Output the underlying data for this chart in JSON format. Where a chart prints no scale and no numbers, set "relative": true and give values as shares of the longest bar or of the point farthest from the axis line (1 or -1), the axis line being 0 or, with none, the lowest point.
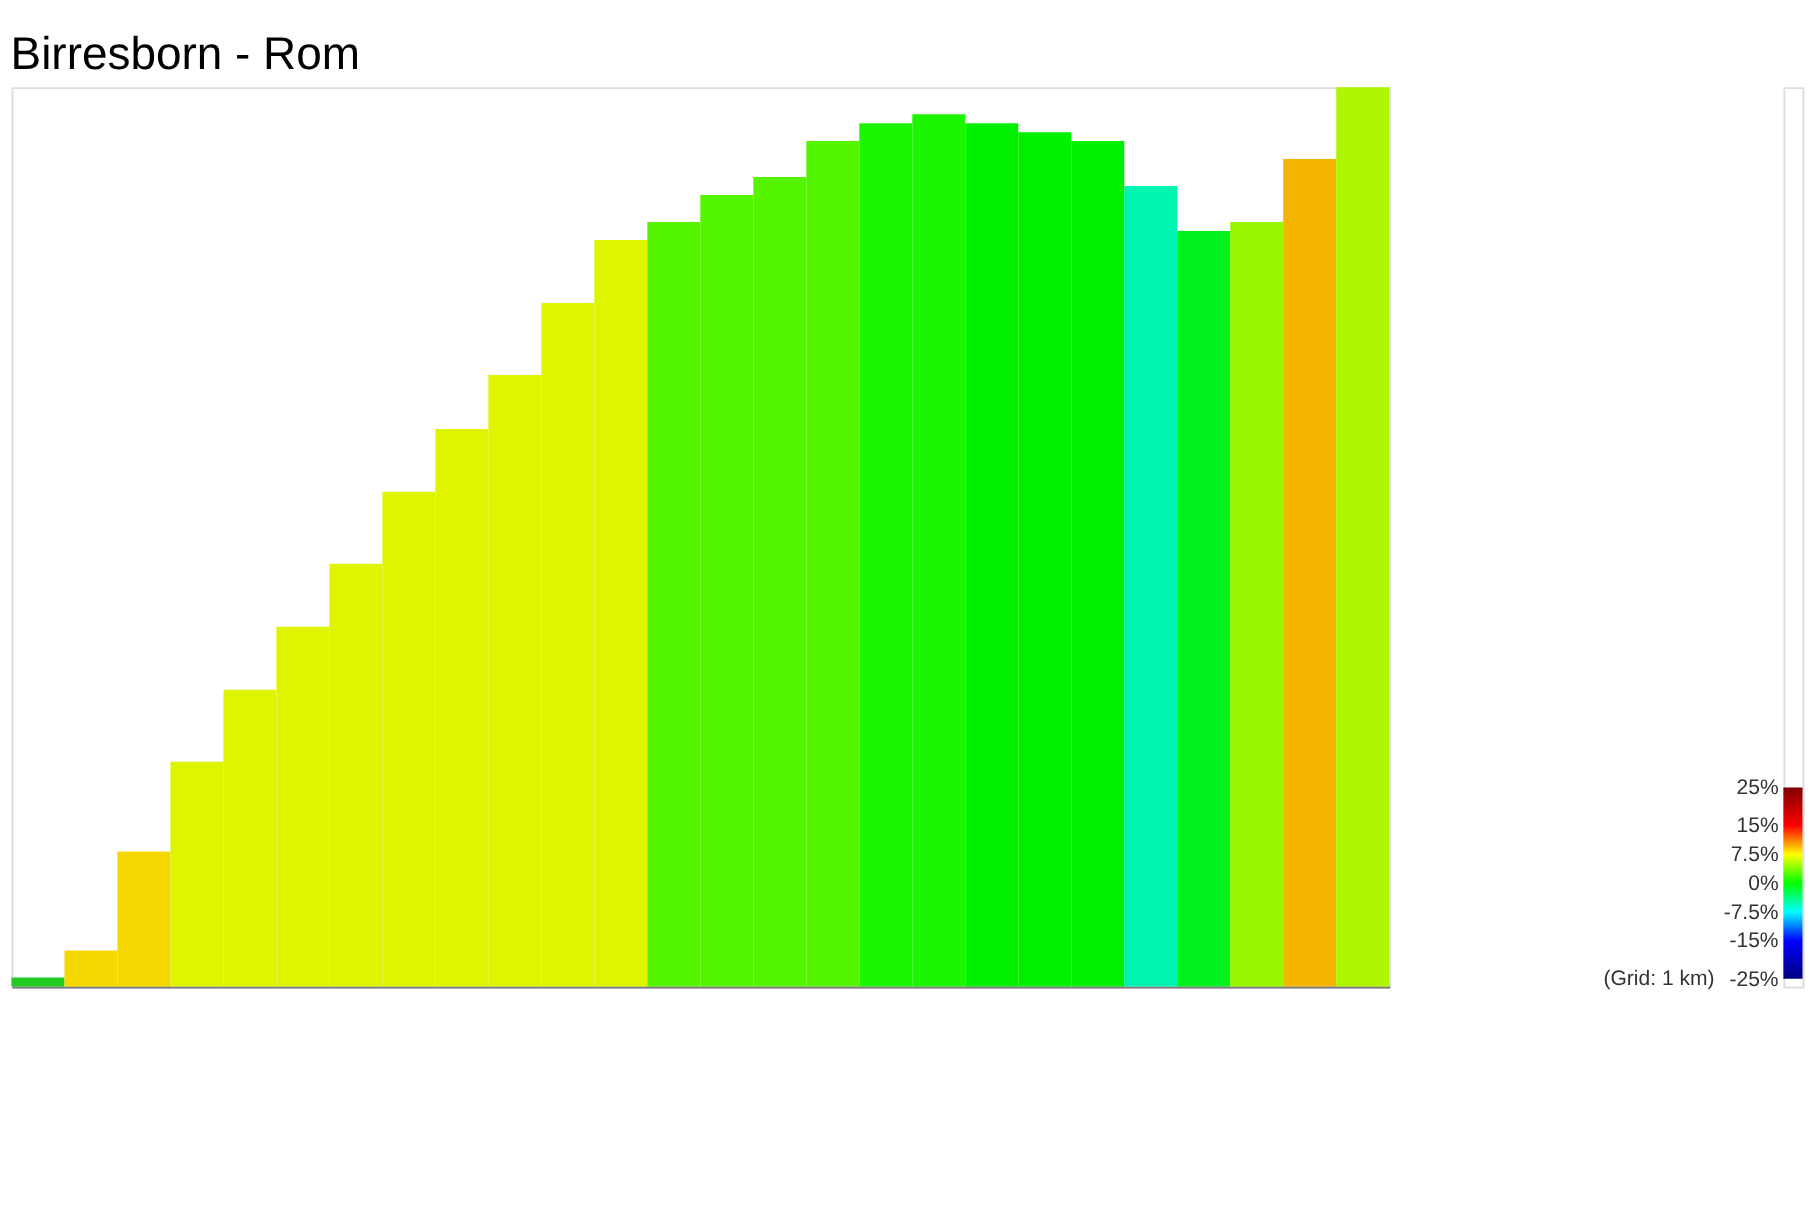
{
  "chart_data": {
    "type": "bar",
    "title": "Birresborn - Rom",
    "relative": true,
    "categories": [
      null,
      null,
      null,
      null,
      null,
      null,
      null,
      null,
      null,
      null,
      null,
      null,
      null,
      null,
      null,
      null,
      null,
      null,
      null,
      null,
      null,
      null,
      null,
      null,
      null,
      null
    ],
    "values": [
      0.01,
      0.04,
      0.15,
      0.25,
      0.33,
      0.4,
      0.47,
      0.55,
      0.62,
      0.68,
      0.76,
      0.83,
      0.85,
      0.88,
      0.9,
      0.94,
      0.96,
      0.97,
      0.96,
      0.95,
      0.94,
      0.89,
      0.84,
      0.85,
      0.92,
      1
    ],
    "colors": [
      "#22cc22",
      "#f5d800",
      "#f5d800",
      "#dff500",
      "#dff500",
      "#dff500",
      "#dff500",
      "#dff500",
      "#dff500",
      "#dff500",
      "#dff500",
      "#dff500",
      "#55f500",
      "#55f500",
      "#55f500",
      "#55f500",
      "#1cf500",
      "#1cf500",
      "#00f000",
      "#00f000",
      "#00f000",
      "#00f5b0",
      "#00f020",
      "#99f500",
      "#f5b400",
      "#b0f500"
    ],
    "clim": [
      -25,
      25
    ],
    "cticks": [
      {
        "value": 25,
        "label": "25%"
      },
      {
        "value": 15,
        "label": "15%"
      },
      {
        "value": 7.5,
        "label": "7.5%"
      },
      {
        "value": 0,
        "label": "0%"
      },
      {
        "value": -7.5,
        "label": "-7.5%"
      },
      {
        "value": -15,
        "label": "-15%"
      },
      {
        "value": -25,
        "label": "-25%"
      }
    ],
    "annotations": [
      "(Grid: 1 km)"
    ]
  }
}
